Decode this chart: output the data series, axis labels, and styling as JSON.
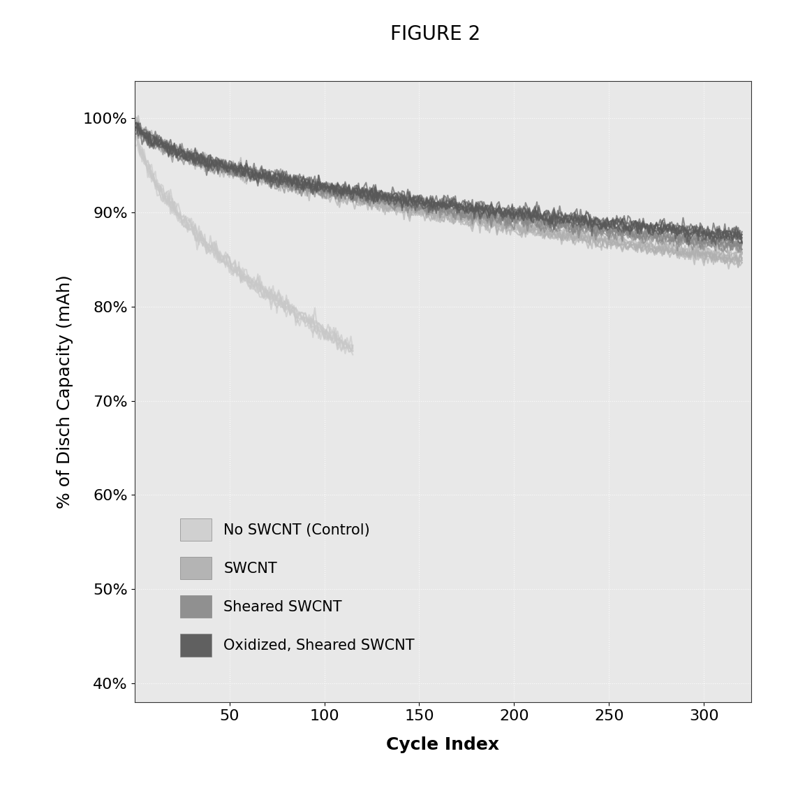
{
  "title": "FIGURE 2",
  "xlabel": "Cycle Index",
  "ylabel": "% of Disch Capacity (mAh)",
  "xlim": [
    0,
    325
  ],
  "ylim": [
    0.38,
    1.04
  ],
  "xticks": [
    50,
    100,
    150,
    200,
    250,
    300
  ],
  "yticks": [
    0.4,
    0.5,
    0.6,
    0.7,
    0.8,
    0.9,
    1.0
  ],
  "ytick_labels": [
    "40%",
    "50%",
    "60%",
    "70%",
    "80%",
    "90%",
    "100%"
  ],
  "background_color": "#ffffff",
  "plot_bg_color": "#e8e8e8",
  "grid_color": "#ffffff",
  "legend_colors": [
    "#d0d0d0",
    "#b4b4b4",
    "#909090",
    "#606060"
  ],
  "legend_labels": [
    "No SWCNT (Control)",
    "SWCNT",
    "Sheared SWCNT",
    "Oxidized, Sheared SWCNT"
  ],
  "title_fontsize": 20,
  "axis_label_fontsize": 18,
  "tick_fontsize": 16,
  "legend_fontsize": 15
}
